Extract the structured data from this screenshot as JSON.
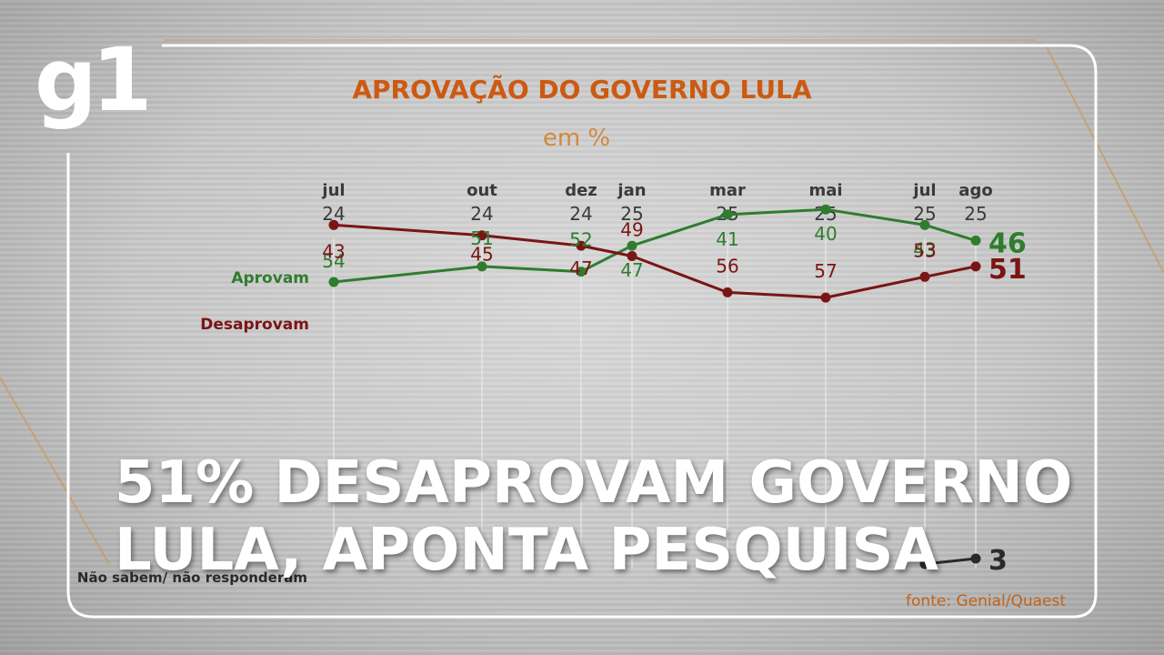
{
  "logo": "g1",
  "headline": {
    "line1": "51% DESAPROVAM GOVERNO",
    "line2": "LULA, APONTA PESQUISA"
  },
  "chart_data": {
    "type": "line",
    "title": "APROVAÇÃO DO GOVERNO LULA",
    "subtitle": "em %",
    "source": "fonte: Genial/Quaest",
    "x": [
      {
        "month": "jul",
        "year": "24"
      },
      {
        "month": "out",
        "year": "24"
      },
      {
        "month": "dez",
        "year": "24"
      },
      {
        "month": "jan",
        "year": "25"
      },
      {
        "month": "mar",
        "year": "25"
      },
      {
        "month": "mai",
        "year": "25"
      },
      {
        "month": "jul",
        "year": "25"
      },
      {
        "month": "ago",
        "year": "25"
      }
    ],
    "series": [
      {
        "name": "Aprovam",
        "color": "#2e7d2e",
        "values": [
          54,
          51,
          52,
          47,
          41,
          40,
          43,
          46
        ]
      },
      {
        "name": "Desaprovam",
        "color": "#7a1515",
        "values": [
          43,
          45,
          47,
          49,
          56,
          57,
          53,
          51
        ]
      },
      {
        "name": "Não sabem/ não responderam",
        "color": "#2a2a2a",
        "values": [
          null,
          null,
          null,
          null,
          null,
          null,
          4,
          3
        ]
      }
    ],
    "grid": "vertical"
  }
}
